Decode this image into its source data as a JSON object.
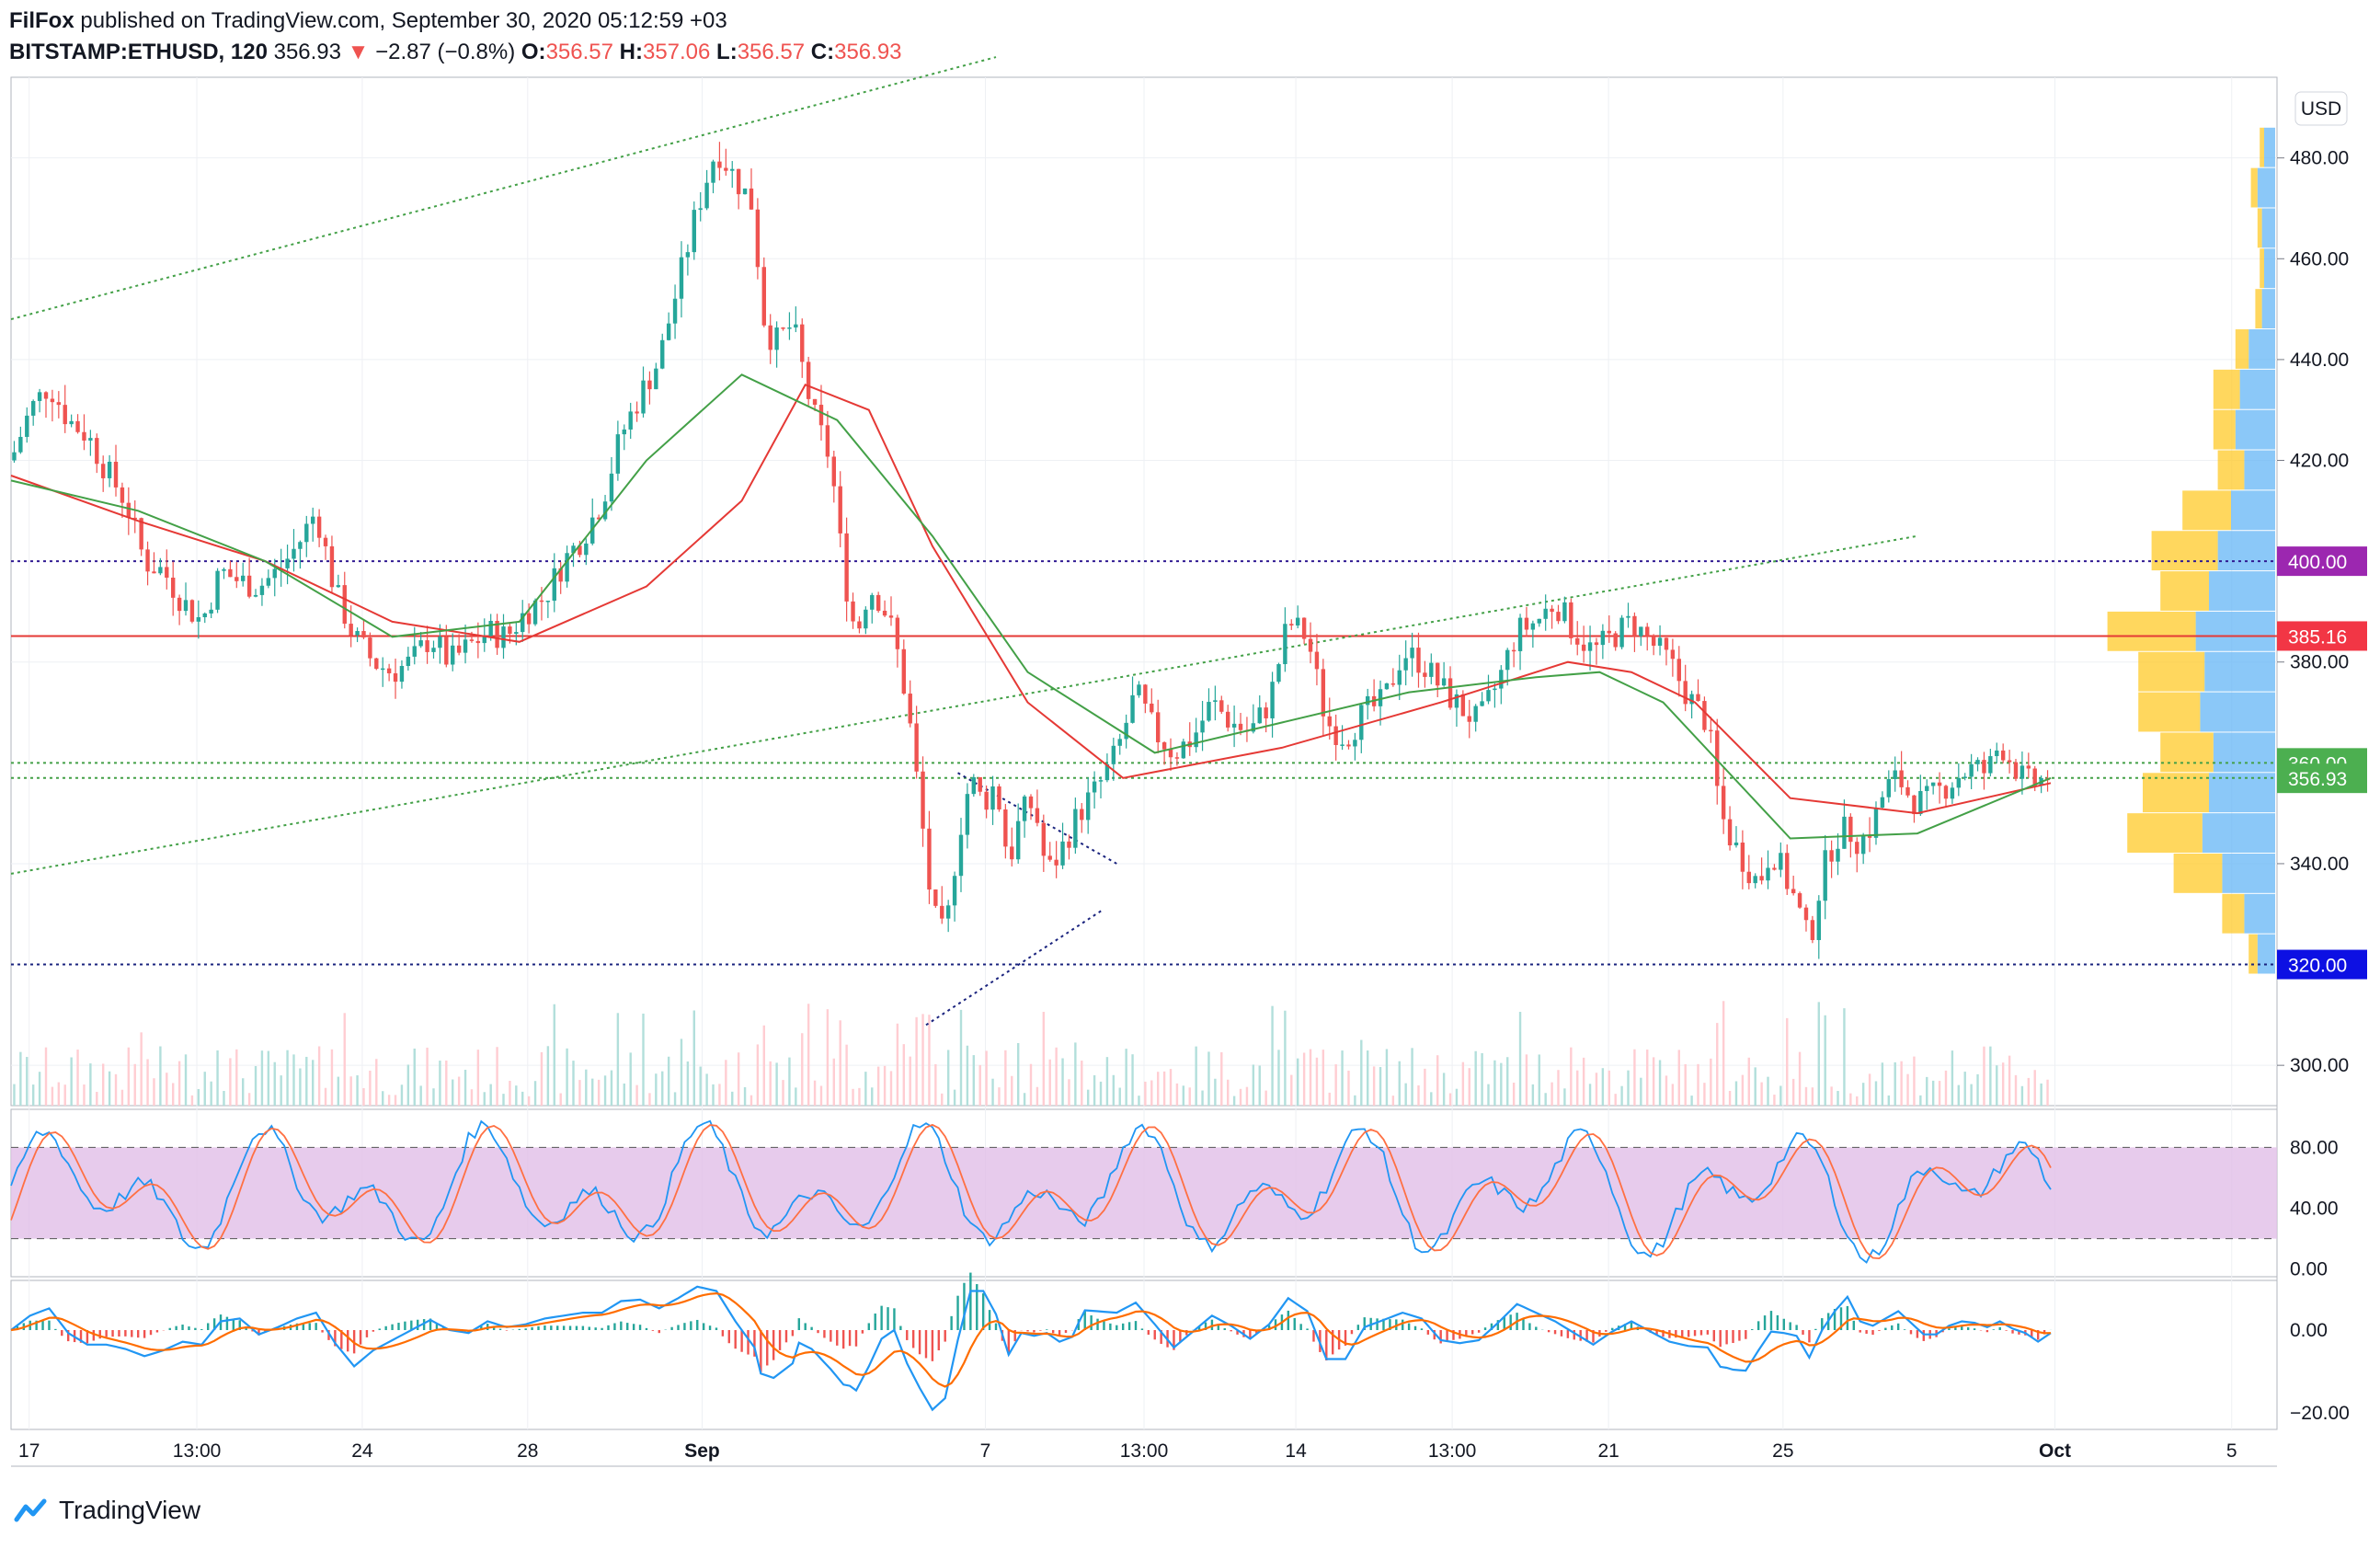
{
  "header": {
    "publisher": "FilFox",
    "published_text": "published on TradingView.com, September 30, 2020 05:12:59 +03",
    "symbol": "BITSTAMP:ETHUSD, 120",
    "last": "356.93",
    "change_arrow": "▼",
    "change": "−2.87 (−0.8%)",
    "o_label": "O:",
    "o": "356.57",
    "h_label": "H:",
    "h": "357.06",
    "l_label": "L:",
    "l": "356.57",
    "c_label": "C:",
    "c": "356.93"
  },
  "currency_button": "USD",
  "footer": {
    "brand": "TradingView",
    "logo_icon": "tradingview-logo-icon"
  },
  "colors": {
    "up": "#26a69a",
    "down": "#ef5350",
    "ma_fast": "#43a047",
    "ma_slow": "#e53935",
    "stoch_band": "#e1bee7",
    "stoch_k": "#2196f3",
    "stoch_d": "#ff7043",
    "macd": "#2196f3",
    "signal": "#ff6d00",
    "vp_up": "#64b5f6",
    "vp_down": "#ffca28"
  },
  "chart_data": {
    "type": "candlestick",
    "price_axis": {
      "ticks": [
        "480.00",
        "460.00",
        "440.00",
        "420.00",
        "380.00",
        "340.00",
        "300.00"
      ],
      "ylim": [
        292,
        496
      ]
    },
    "time_axis": {
      "ticks": [
        "17",
        "13:00",
        "24",
        "28",
        "Sep",
        "7",
        "13:00",
        "14",
        "13:00",
        "21",
        "25",
        "Oct",
        "5"
      ]
    },
    "price_labels": [
      {
        "text": "400.00",
        "value": 400,
        "color": "#9c27b0"
      },
      {
        "text": "385.16",
        "value": 385.16,
        "color": "#f23645"
      },
      {
        "text": "360.00",
        "value": 360,
        "color": "#4caf50"
      },
      {
        "text": "356.93",
        "value": 356.93,
        "color": "#4caf50"
      },
      {
        "text": "320.00",
        "value": 320,
        "color": "#0d10e3"
      }
    ],
    "horizontal_levels": [
      {
        "value": 400,
        "style": "dotted",
        "color": "#311b92"
      },
      {
        "value": 385.16,
        "style": "solid",
        "color": "#e53935"
      },
      {
        "value": 360,
        "style": "dotted",
        "color": "#43a047"
      },
      {
        "value": 357,
        "style": "dotted",
        "color": "#43a047"
      },
      {
        "value": 320,
        "style": "dotted",
        "color": "#1a237e"
      }
    ],
    "close_path": [
      [
        0,
        420
      ],
      [
        6,
        430
      ],
      [
        12,
        435
      ],
      [
        18,
        428
      ],
      [
        24,
        425
      ],
      [
        30,
        418
      ],
      [
        36,
        412
      ],
      [
        42,
        400
      ],
      [
        48,
        398
      ],
      [
        54,
        392
      ],
      [
        60,
        388
      ],
      [
        66,
        398
      ],
      [
        72,
        396
      ],
      [
        78,
        395
      ],
      [
        84,
        398
      ],
      [
        90,
        403
      ],
      [
        96,
        410
      ],
      [
        102,
        394
      ],
      [
        108,
        385
      ],
      [
        114,
        380
      ],
      [
        120,
        378
      ],
      [
        126,
        380
      ],
      [
        132,
        385
      ],
      [
        138,
        380
      ],
      [
        144,
        383
      ],
      [
        150,
        386
      ],
      [
        156,
        385
      ],
      [
        162,
        390
      ],
      [
        168,
        393
      ],
      [
        174,
        400
      ],
      [
        180,
        405
      ],
      [
        186,
        412
      ],
      [
        192,
        425
      ],
      [
        198,
        433
      ],
      [
        204,
        440
      ],
      [
        210,
        455
      ],
      [
        216,
        470
      ],
      [
        222,
        482
      ],
      [
        228,
        476
      ],
      [
        234,
        470
      ],
      [
        236,
        450
      ],
      [
        240,
        443
      ],
      [
        246,
        447
      ],
      [
        252,
        430
      ],
      [
        258,
        420
      ],
      [
        262,
        398
      ],
      [
        266,
        385
      ],
      [
        270,
        395
      ],
      [
        274,
        392
      ],
      [
        278,
        385
      ],
      [
        282,
        372
      ],
      [
        286,
        352
      ],
      [
        290,
        330
      ],
      [
        294,
        325
      ],
      [
        298,
        345
      ],
      [
        302,
        357
      ],
      [
        306,
        352
      ],
      [
        310,
        356
      ],
      [
        314,
        340
      ],
      [
        318,
        350
      ],
      [
        322,
        352
      ],
      [
        326,
        338
      ],
      [
        330,
        342
      ],
      [
        336,
        350
      ],
      [
        342,
        355
      ],
      [
        348,
        362
      ],
      [
        354,
        374
      ],
      [
        360,
        366
      ],
      [
        366,
        362
      ],
      [
        372,
        365
      ],
      [
        378,
        372
      ],
      [
        384,
        368
      ],
      [
        390,
        366
      ],
      [
        396,
        372
      ],
      [
        402,
        388
      ],
      [
        408,
        385
      ],
      [
        414,
        368
      ],
      [
        420,
        365
      ],
      [
        426,
        370
      ],
      [
        432,
        372
      ],
      [
        438,
        382
      ],
      [
        444,
        380
      ],
      [
        450,
        375
      ],
      [
        456,
        371
      ],
      [
        462,
        368
      ],
      [
        468,
        376
      ],
      [
        474,
        386
      ],
      [
        480,
        388
      ],
      [
        486,
        392
      ],
      [
        492,
        386
      ],
      [
        498,
        382
      ],
      [
        504,
        385
      ],
      [
        510,
        388
      ],
      [
        516,
        384
      ],
      [
        522,
        380
      ],
      [
        528,
        373
      ],
      [
        534,
        368
      ],
      [
        538,
        350
      ],
      [
        542,
        344
      ],
      [
        546,
        340
      ],
      [
        550,
        336
      ],
      [
        554,
        343
      ],
      [
        558,
        338
      ],
      [
        562,
        332
      ],
      [
        566,
        324
      ],
      [
        570,
        338
      ],
      [
        574,
        345
      ],
      [
        578,
        347
      ],
      [
        582,
        344
      ],
      [
        586,
        348
      ],
      [
        590,
        355
      ],
      [
        594,
        357
      ],
      [
        598,
        353
      ],
      [
        602,
        352
      ],
      [
        606,
        354
      ],
      [
        610,
        356
      ],
      [
        614,
        358
      ],
      [
        618,
        359
      ],
      [
        622,
        358
      ],
      [
        626,
        364
      ],
      [
        630,
        360
      ],
      [
        634,
        356
      ],
      [
        638,
        356
      ],
      [
        642,
        358
      ]
    ],
    "ma_fast_path": [
      [
        0,
        416
      ],
      [
        40,
        410
      ],
      [
        80,
        400
      ],
      [
        120,
        385
      ],
      [
        160,
        388
      ],
      [
        200,
        420
      ],
      [
        230,
        437
      ],
      [
        260,
        428
      ],
      [
        290,
        405
      ],
      [
        320,
        378
      ],
      [
        360,
        362
      ],
      [
        400,
        368
      ],
      [
        440,
        374
      ],
      [
        480,
        377
      ],
      [
        500,
        378
      ],
      [
        520,
        372
      ],
      [
        560,
        345
      ],
      [
        600,
        346
      ],
      [
        642,
        357
      ]
    ],
    "ma_slow_path": [
      [
        0,
        417
      ],
      [
        40,
        408
      ],
      [
        80,
        400
      ],
      [
        120,
        388
      ],
      [
        160,
        384
      ],
      [
        200,
        395
      ],
      [
        230,
        412
      ],
      [
        250,
        435
      ],
      [
        270,
        430
      ],
      [
        290,
        403
      ],
      [
        320,
        372
      ],
      [
        350,
        357
      ],
      [
        400,
        363
      ],
      [
        450,
        372
      ],
      [
        490,
        380
      ],
      [
        510,
        378
      ],
      [
        530,
        372
      ],
      [
        560,
        353
      ],
      [
        600,
        350
      ],
      [
        642,
        356
      ]
    ],
    "trendlines": [
      {
        "from": [
          0,
          448
        ],
        "to": [
          310,
          500
        ],
        "color": "#43a047"
      },
      {
        "from": [
          0,
          338
        ],
        "to": [
          600,
          405
        ],
        "color": "#43a047"
      },
      {
        "from": [
          288,
          308
        ],
        "to": [
          344,
          331
        ],
        "color": "#1a237e"
      },
      {
        "from": [
          298,
          358
        ],
        "to": [
          348,
          340
        ],
        "color": "#1a237e"
      }
    ],
    "stochastic": {
      "ticks": [
        "80.00",
        "40.00",
        "0.00"
      ],
      "upper": 80,
      "lower": 20,
      "ylim": [
        -5,
        105
      ]
    },
    "macd": {
      "ticks": [
        "0.00",
        "−20.00"
      ],
      "ylim": [
        -24,
        12
      ]
    },
    "volume_profile": [
      {
        "price": 482,
        "up": 0.05,
        "down": 0.02
      },
      {
        "price": 474,
        "up": 0.08,
        "down": 0.03
      },
      {
        "price": 466,
        "up": 0.06,
        "down": 0.02
      },
      {
        "price": 458,
        "up": 0.05,
        "down": 0.02
      },
      {
        "price": 450,
        "up": 0.06,
        "down": 0.03
      },
      {
        "price": 442,
        "up": 0.12,
        "down": 0.06
      },
      {
        "price": 434,
        "up": 0.16,
        "down": 0.12
      },
      {
        "price": 426,
        "up": 0.18,
        "down": 0.1
      },
      {
        "price": 418,
        "up": 0.14,
        "down": 0.12
      },
      {
        "price": 410,
        "up": 0.2,
        "down": 0.22
      },
      {
        "price": 402,
        "up": 0.26,
        "down": 0.3
      },
      {
        "price": 394,
        "up": 0.3,
        "down": 0.22
      },
      {
        "price": 386,
        "up": 0.36,
        "down": 0.4
      },
      {
        "price": 378,
        "up": 0.32,
        "down": 0.3
      },
      {
        "price": 370,
        "up": 0.34,
        "down": 0.28
      },
      {
        "price": 362,
        "up": 0.28,
        "down": 0.24
      },
      {
        "price": 354,
        "up": 0.3,
        "down": 0.3
      },
      {
        "price": 346,
        "up": 0.33,
        "down": 0.34
      },
      {
        "price": 338,
        "up": 0.24,
        "down": 0.22
      },
      {
        "price": 330,
        "up": 0.14,
        "down": 0.1
      },
      {
        "price": 322,
        "up": 0.08,
        "down": 0.04
      }
    ]
  }
}
